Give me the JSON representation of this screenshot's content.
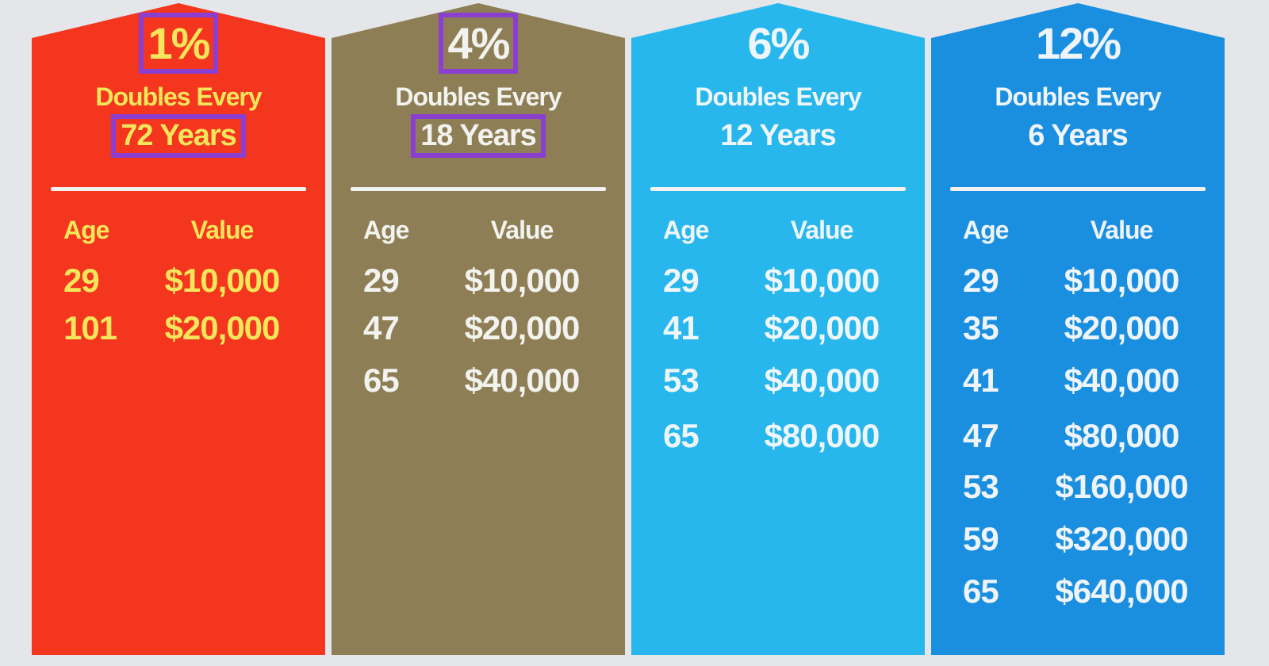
{
  "columns": [
    {
      "rate": "1%",
      "doubles_label": "Doubles Every",
      "years": "72 Years",
      "highlighted": true,
      "bg": "#f4361f",
      "text_color": "#f4e65a",
      "age_header": "Age",
      "value_header": "Value",
      "rows": [
        {
          "age": "29",
          "value": "$10,000"
        },
        {
          "age": "101",
          "value": "$20,000"
        }
      ]
    },
    {
      "rate": "4%",
      "doubles_label": "Doubles Every",
      "years": "18 Years",
      "highlighted": true,
      "bg": "#8e7e55",
      "text_color": "#f2f2ee",
      "age_header": "Age",
      "value_header": "Value",
      "rows": [
        {
          "age": "29",
          "value": "$10,000"
        },
        {
          "age": "47",
          "value": "$20,000"
        },
        {
          "age": "65",
          "value": "$40,000"
        }
      ]
    },
    {
      "rate": "6%",
      "doubles_label": "Doubles Every",
      "years": "12 Years",
      "highlighted": false,
      "bg": "#27b7ec",
      "text_color": "#eef6fa",
      "age_header": "Age",
      "value_header": "Value",
      "rows": [
        {
          "age": "29",
          "value": "$10,000"
        },
        {
          "age": "41",
          "value": "$20,000"
        },
        {
          "age": "53",
          "value": "$40,000"
        },
        {
          "age": "65",
          "value": "$80,000"
        }
      ]
    },
    {
      "rate": "12%",
      "doubles_label": "Doubles Every",
      "years": "6 Years",
      "highlighted": false,
      "bg": "#1a8fe0",
      "text_color": "#eef4fa",
      "age_header": "Age",
      "value_header": "Value",
      "rows": [
        {
          "age": "29",
          "value": "$10,000"
        },
        {
          "age": "35",
          "value": "$20,000"
        },
        {
          "age": "41",
          "value": "$40,000"
        },
        {
          "age": "47",
          "value": "$80,000"
        },
        {
          "age": "53",
          "value": "$160,000"
        },
        {
          "age": "59",
          "value": "$320,000"
        },
        {
          "age": "65",
          "value": "$640,000"
        }
      ]
    }
  ]
}
